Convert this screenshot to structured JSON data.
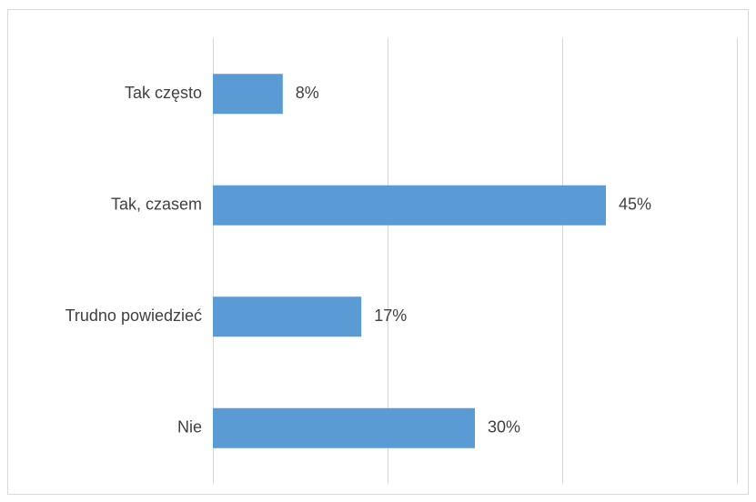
{
  "chart_data": {
    "type": "bar",
    "orientation": "horizontal",
    "categories": [
      "Tak często",
      "Tak, czasem",
      "Trudno powiedzieć",
      "Nie"
    ],
    "values": [
      8,
      45,
      17,
      30
    ],
    "value_labels": [
      "8%",
      "45%",
      "17%",
      "30%"
    ],
    "xlim": [
      0,
      60
    ],
    "grid": true,
    "legend": "none",
    "colors": {
      "bar": "#5b9bd5",
      "grid": "#d9d9d9",
      "text": "#404040"
    }
  }
}
